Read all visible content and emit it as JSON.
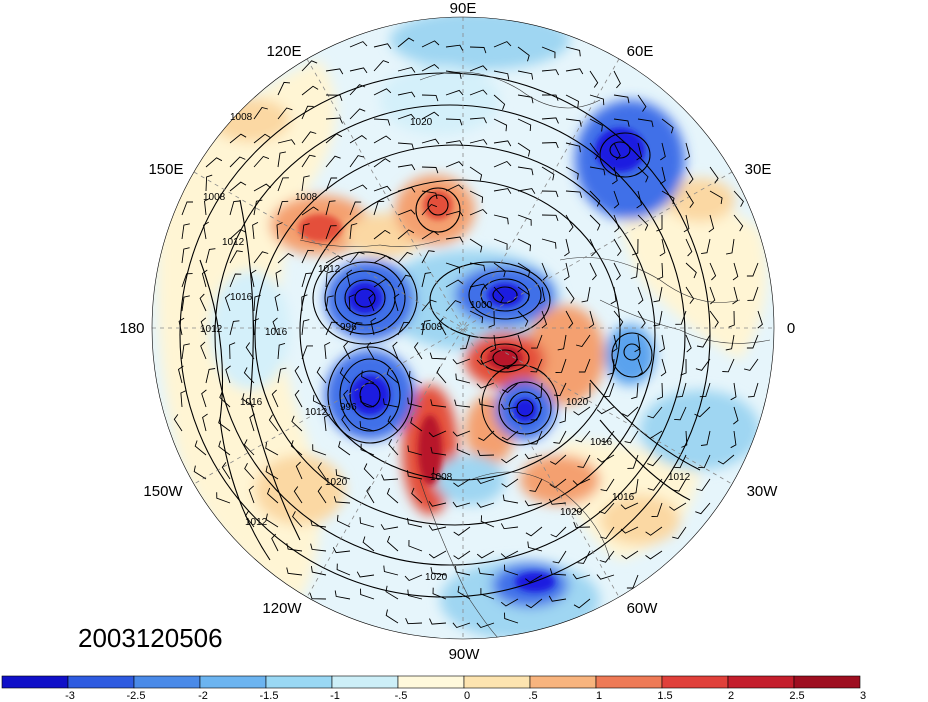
{
  "map": {
    "projection": "north-polar-stereographic",
    "date_label": "2003120506",
    "lon_labels": {
      "n": "90E",
      "ne1": "60E",
      "ne2": "30E",
      "e": "0",
      "se1": "30W",
      "se2": "60W",
      "s": "90W",
      "sw1": "120W",
      "sw2": "150W",
      "w": "180",
      "nw1": "150E",
      "nw2": "120E"
    },
    "contour_labels": {
      "c1": "1008",
      "c2": "1008",
      "c3": "1012",
      "c4": "1016",
      "c5": "1012",
      "c6": "1016",
      "c7": "1016",
      "c8": "1012",
      "c9": "1020",
      "c10": "1012",
      "c11": "1020",
      "c12": "1016",
      "c13": "1016",
      "c14": "1012",
      "c15": "1020",
      "c16": "1020",
      "c17": "1012",
      "c18": "1020",
      "c19": "1008",
      "c20": "996",
      "c21": "996",
      "c22": "1000",
      "c23": "1008",
      "c24": "1008"
    },
    "fill_colors": {
      "deep_blue": "#1a1ee0",
      "blue": "#3f70e8",
      "mid_blue": "#5aa2ee",
      "light_blue": "#9fd6f2",
      "pale_blue": "#d4f0fa",
      "pale_yellow": "#fff5d4",
      "light_orange": "#fbd8a3",
      "orange": "#f4a070",
      "red": "#e4503a",
      "dark_red": "#b8182a"
    }
  },
  "colorbar": {
    "labels": {
      "t1": "-3",
      "t2": "-2.5",
      "t3": "-2",
      "t4": "-1.5",
      "t5": "-1",
      "t6": "-.5",
      "t7": "0",
      "t8": ".5",
      "t9": "1",
      "t10": "1.5",
      "t11": "2",
      "t12": "2.5",
      "t13": "3"
    },
    "colors": [
      "#1010c8",
      "#2e5be0",
      "#4a8ae8",
      "#6cb4f0",
      "#9ad8f4",
      "#cdeff8",
      "#fff9dc",
      "#fde4b0",
      "#f8b47e",
      "#ee7a56",
      "#e0403a",
      "#c41e2c",
      "#9e0e20"
    ]
  }
}
